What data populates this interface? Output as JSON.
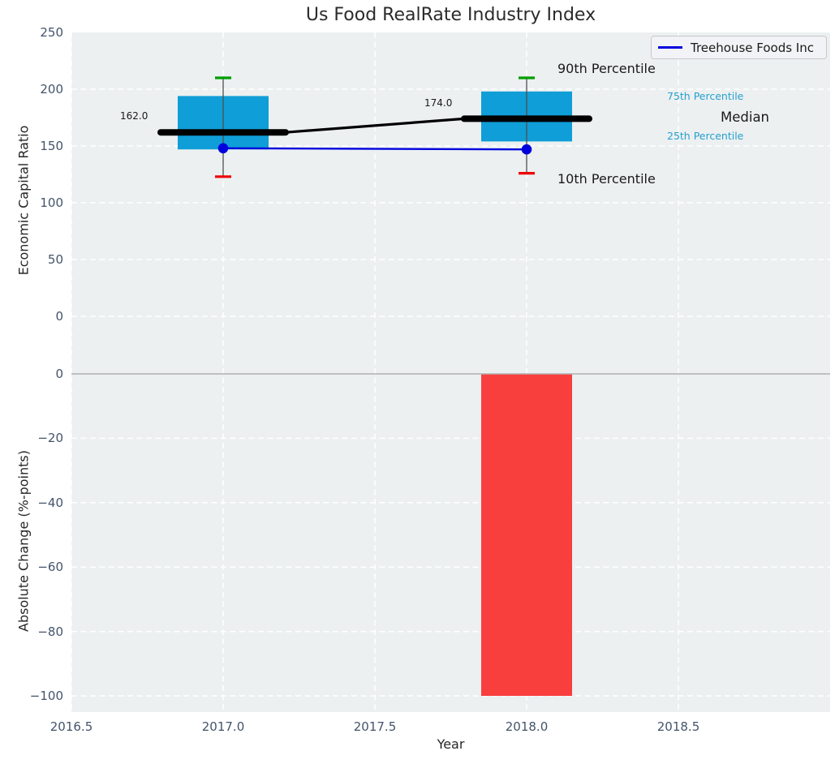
{
  "title": "Us Food RealRate Industry Index",
  "legend": {
    "series_label": "Treehouse Foods Inc"
  },
  "labels": {
    "p90": "90th Percentile",
    "p75": "75th Percentile",
    "median": "Median",
    "p25": "25th Percentile",
    "p10": "10th Percentile",
    "median_value_2017": "162.0",
    "median_value_2018": "174.0"
  },
  "colors": {
    "box": "#0f9ed7",
    "bar_negative": "#f93e3e",
    "company_line": "#0000dd",
    "median_line": "#000000",
    "whisker": "#4d4d4d",
    "cap_high": "#009e00",
    "cap_low": "#ee0000",
    "percentile_label_accent": "#26a0ce",
    "plot_background": "#ecf0f1",
    "grid": "#ffffff",
    "tick_text": "#44546b",
    "zero_line": "#b0b0b0"
  },
  "chart_data": [
    {
      "type": "box-percentile-with-line",
      "title": "Us Food RealRate Industry Index",
      "ylabel": "Economic Capital Ratio",
      "x": [
        2017,
        2018
      ],
      "series": [
        {
          "name": "90th Percentile",
          "values": [
            210,
            210
          ]
        },
        {
          "name": "75th Percentile",
          "values": [
            194,
            198
          ]
        },
        {
          "name": "Median",
          "values": [
            162,
            174
          ]
        },
        {
          "name": "25th Percentile",
          "values": [
            147,
            154
          ]
        },
        {
          "name": "10th Percentile",
          "values": [
            123,
            126
          ]
        },
        {
          "name": "Treehouse Foods Inc",
          "values": [
            148,
            147
          ]
        }
      ],
      "median_point_labels": [
        "162.0",
        "174.0"
      ],
      "ylim": [
        0,
        250
      ],
      "yticks": [
        0,
        50,
        100,
        150,
        200,
        250
      ],
      "ytick_labels": [
        "0",
        "50",
        "100",
        "150",
        "200",
        "250"
      ],
      "grid": true,
      "legend_position": "upper right"
    },
    {
      "type": "bar",
      "ylabel": "Absolute Change (%-points)",
      "xlabel": "Year",
      "x": [
        2018
      ],
      "values": [
        -100
      ],
      "ylim": [
        -105,
        1
      ],
      "yticks": [
        0,
        -20,
        -40,
        -60,
        -80,
        -100
      ],
      "ytick_labels": [
        "0",
        "−20",
        "−40",
        "−60",
        "−80",
        "−100"
      ],
      "xticks": [
        2016.5,
        2017.0,
        2017.5,
        2018.0,
        2018.5
      ],
      "xtick_labels": [
        "2016.5",
        "2017.0",
        "2017.5",
        "2018.0",
        "2018.5"
      ],
      "xlim": [
        2016.5,
        2019.0
      ],
      "grid": true
    }
  ]
}
